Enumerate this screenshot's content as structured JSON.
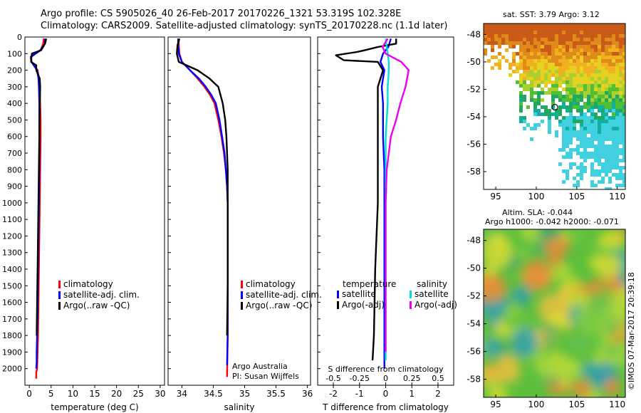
{
  "header": {
    "title_line1": "Argo profile: CS 5905026_40 26-Feb-2017 20170226_1321 53.319S 102.328E",
    "title_line2": "Climatology: CARS2009. Satellite-adjusted climatology: synTS_20170228.nc (1.1d later)",
    "sst_title": "sat. SST: 3.79 Argo: 3.12",
    "sla_title1": "Altim. SLA: -0.044",
    "sla_title2": "Argo h1000: -0.042 h2000: -0.071"
  },
  "footer": {
    "credit": "©IMOS 07-Mar-2017 20:39:18",
    "argo_label1": "Argo Australia",
    "argo_label2": "PI: Susan Wijffels"
  },
  "colors": {
    "climatology": "#ff0000",
    "satellite": "#0000ff",
    "argo": "#000000",
    "sal_satellite": "#00dddd",
    "sal_argo": "#ee00ee"
  },
  "chart_data": [
    {
      "type": "line",
      "name": "temperature profile",
      "xlabel": "temperature (deg C)",
      "ylabel": "",
      "xlim": [
        -1,
        31
      ],
      "ylim": [
        2100,
        0
      ],
      "xticks": [
        0,
        5,
        10,
        15,
        20,
        25,
        30
      ],
      "yticks": [
        0,
        100,
        200,
        300,
        400,
        500,
        600,
        700,
        800,
        900,
        1000,
        1100,
        1200,
        1300,
        1400,
        1500,
        1600,
        1700,
        1800,
        1900,
        2000
      ],
      "legend": [
        "climatology",
        "satellite-adj. clim.",
        "Argo(..raw -QC)"
      ],
      "series": [
        {
          "name": "climatology",
          "x": [
            3.3,
            3.2,
            2.6,
            0.3,
            0.5,
            1.9,
            2.2,
            2.4,
            2.5,
            2.6,
            2.6,
            2.5,
            2.4,
            2.3,
            2.2,
            2.1,
            2.0,
            1.9,
            1.8,
            1.6,
            1.6
          ],
          "y": [
            10,
            40,
            80,
            120,
            150,
            200,
            250,
            300,
            400,
            500,
            600,
            800,
            1000,
            1200,
            1400,
            1600,
            1800,
            1900,
            2000,
            2020,
            2060
          ]
        },
        {
          "name": "satellite-adj. clim.",
          "x": [
            3.6,
            3.6,
            2.5,
            0.4,
            0.5,
            1.8,
            2.1,
            2.2,
            2.3,
            2.3,
            2.3,
            2.2,
            2.1,
            2.0,
            1.9,
            1.8,
            1.7,
            1.7,
            1.6
          ],
          "y": [
            10,
            40,
            80,
            120,
            150,
            200,
            250,
            300,
            400,
            600,
            800,
            1000,
            1200,
            1400,
            1600,
            1800,
            1900,
            1960,
            2000
          ]
        },
        {
          "name": "Argo(..raw -QC)",
          "x": [
            3.9,
            3.6,
            2.7,
            0.6,
            0.5,
            0.4,
            1.6,
            1.6,
            2.4,
            2.5,
            2.4,
            2.3,
            2.2,
            2.1,
            2.0,
            1.9,
            1.8,
            1.7
          ],
          "y": [
            10,
            40,
            80,
            100,
            120,
            150,
            170,
            200,
            250,
            300,
            400,
            600,
            800,
            1000,
            1200,
            1400,
            1600,
            1800
          ]
        }
      ]
    },
    {
      "type": "line",
      "name": "salinity profile",
      "xlabel": "salinity",
      "ylabel": "",
      "xlim": [
        33.78,
        36.05
      ],
      "ylim": [
        2100,
        0
      ],
      "xticks": [
        34,
        34.5,
        35,
        35.5,
        36
      ],
      "xticklabels": [
        "34",
        "34.5",
        "35",
        "35.5",
        "36"
      ],
      "legend": [
        "climatology",
        "satellite-adj. clim.",
        "Argo(..raw -QC)"
      ],
      "series": [
        {
          "name": "climatology",
          "x": [
            33.95,
            33.95,
            33.96,
            34.0,
            34.13,
            34.25,
            34.36,
            34.45,
            34.52,
            34.58,
            34.63,
            34.67,
            34.7,
            34.72,
            34.73,
            34.73,
            34.73,
            34.73,
            34.72
          ],
          "y": [
            10,
            50,
            100,
            150,
            200,
            250,
            300,
            350,
            400,
            500,
            600,
            700,
            800,
            900,
            1000,
            1200,
            1500,
            1800,
            2050
          ]
        },
        {
          "name": "satellite-adj. clim.",
          "x": [
            33.94,
            33.94,
            33.95,
            34.0,
            34.13,
            34.27,
            34.38,
            34.47,
            34.54,
            34.6,
            34.64,
            34.68,
            34.7,
            34.72,
            34.73,
            34.73,
            34.73,
            34.73,
            34.72
          ],
          "y": [
            10,
            50,
            100,
            150,
            200,
            250,
            300,
            350,
            400,
            500,
            600,
            700,
            800,
            900,
            1000,
            1200,
            1500,
            1800,
            1980
          ]
        },
        {
          "name": "Argo(..raw -QC)",
          "x": [
            33.96,
            33.93,
            33.92,
            33.95,
            34.07,
            34.25,
            34.44,
            34.58,
            34.65,
            34.69,
            34.71,
            34.73,
            34.73,
            34.73,
            34.73,
            34.73,
            34.72
          ],
          "y": [
            10,
            50,
            100,
            150,
            170,
            200,
            250,
            300,
            400,
            500,
            600,
            800,
            900,
            1000,
            1200,
            1500,
            1800
          ]
        }
      ]
    },
    {
      "type": "line",
      "name": "difference from climatology",
      "xlabel": "T difference from climatology",
      "xlabel_top": "S difference from climatology",
      "xlim": [
        -2.6,
        2.6
      ],
      "ylim": [
        2100,
        0
      ],
      "xticks": [
        -2,
        -1,
        0,
        1,
        2
      ],
      "xticks_top": [
        -0.5,
        -0.25,
        0,
        0.25,
        0.5
      ],
      "legend_headers": [
        "temperature",
        "salinity"
      ],
      "legend": [
        "satellite",
        "Argo(-adj)",
        "satellite",
        "Argo(-adj)"
      ],
      "series": [
        {
          "name": "T satellite",
          "x": [
            0.2,
            0.1,
            -0.1,
            -0.2,
            -0.05,
            -0.1,
            -0.15,
            -0.1,
            -0.1,
            -0.05,
            -0.05,
            -0.05,
            -0.05,
            -0.05
          ],
          "y": [
            10,
            60,
            100,
            150,
            200,
            250,
            300,
            400,
            600,
            800,
            1000,
            1400,
            1800,
            2000
          ]
        },
        {
          "name": "T Argo(-adj)",
          "x": [
            0.4,
            0.4,
            -0.3,
            -0.8,
            -1.1,
            -1.9,
            -1.6,
            -0.3,
            -0.1,
            -0.2,
            -0.3,
            -0.3,
            -0.3,
            -0.3,
            -0.3,
            -0.4,
            -0.45,
            -0.5
          ],
          "y": [
            10,
            40,
            60,
            80,
            90,
            110,
            140,
            150,
            200,
            250,
            300,
            400,
            600,
            800,
            1000,
            1400,
            1800,
            1950
          ]
        },
        {
          "name": "S satellite",
          "x": [
            0.0,
            0.01,
            0.02,
            0.03,
            0.03,
            0.02,
            0.02,
            0.0,
            0.0,
            0.0
          ],
          "y": [
            10,
            60,
            100,
            150,
            200,
            300,
            400,
            600,
            1000,
            1950
          ]
        },
        {
          "name": "S Argo(-adj)",
          "x": [
            0.02,
            -0.03,
            0.0,
            0.15,
            0.22,
            0.19,
            0.14,
            0.1,
            0.05,
            0.03,
            0.01,
            0.0,
            0.0
          ],
          "y": [
            10,
            60,
            100,
            150,
            200,
            300,
            400,
            500,
            600,
            700,
            800,
            1000,
            1900
          ]
        }
      ]
    },
    {
      "type": "heatmap",
      "name": "satellite SST map",
      "xlim": [
        93.5,
        111
      ],
      "ylim": [
        -59.3,
        -47.2
      ],
      "xticks": [
        95,
        100,
        105,
        110
      ],
      "yticks": [
        -48,
        -50,
        -52,
        -54,
        -56,
        -58
      ],
      "marker": {
        "x": 102.3,
        "y": -53.3
      }
    },
    {
      "type": "heatmap",
      "name": "altimetry SLA map",
      "xlim": [
        93.5,
        111
      ],
      "ylim": [
        -59.3,
        -47.2
      ],
      "xticks": [
        95,
        100,
        105,
        110
      ],
      "yticks": [
        -48,
        -50,
        -52,
        -54,
        -56,
        -58
      ]
    }
  ]
}
